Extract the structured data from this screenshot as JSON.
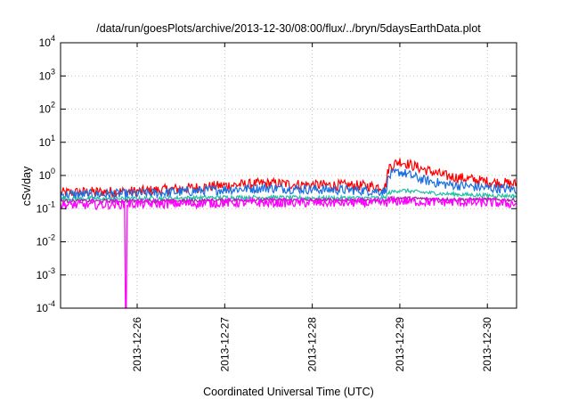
{
  "chart_data": {
    "type": "line",
    "title": "/data/run/goesPlots/archive/2013-12-30/08:00/flux/../bryn/5daysEarthData.plot",
    "xlabel": "Coordinated Universal Time (UTC)",
    "ylabel": "cSv/day",
    "yscale": "log",
    "ylim": [
      0.0001,
      10000
    ],
    "xlim": [
      "2013-12-25T03:00:00Z",
      "2013-12-30T08:00:00Z"
    ],
    "x_ticks": [
      "2013-12-26",
      "2013-12-27",
      "2013-12-28",
      "2013-12-29",
      "2013-12-30"
    ],
    "y_ticks": [
      {
        "base": "10",
        "exp": "4"
      },
      {
        "base": "10",
        "exp": "3"
      },
      {
        "base": "10",
        "exp": "2"
      },
      {
        "base": "10",
        "exp": "1"
      },
      {
        "base": "10",
        "exp": "0"
      },
      {
        "base": "10",
        "exp": "-1"
      },
      {
        "base": "10",
        "exp": "-2"
      },
      {
        "base": "10",
        "exp": "-3"
      },
      {
        "base": "10",
        "exp": "-4"
      }
    ],
    "grid": true,
    "dropout": {
      "x": "2013-12-25T21:00:00Z",
      "series": "magenta"
    },
    "series": [
      {
        "color": "#ff0000",
        "x": [
          "2013-12-25T03:00:00Z",
          "2013-12-25T12:00:00Z",
          "2013-12-26T00:00:00Z",
          "2013-12-26T12:00:00Z",
          "2013-12-27T00:00:00Z",
          "2013-12-27T12:00:00Z",
          "2013-12-28T00:00:00Z",
          "2013-12-28T12:00:00Z",
          "2013-12-28T20:00:00Z",
          "2013-12-28T21:00:00Z",
          "2013-12-29T00:00:00Z",
          "2013-12-29T06:00:00Z",
          "2013-12-29T12:00:00Z",
          "2013-12-30T00:00:00Z",
          "2013-12-30T08:00:00Z"
        ],
        "y": [
          0.3,
          0.32,
          0.33,
          0.4,
          0.5,
          0.58,
          0.52,
          0.5,
          0.45,
          1.8,
          2.7,
          1.6,
          1.0,
          0.65,
          0.55
        ]
      },
      {
        "color": "#1a6ee0",
        "x": [
          "2013-12-25T03:00:00Z",
          "2013-12-25T12:00:00Z",
          "2013-12-26T00:00:00Z",
          "2013-12-26T12:00:00Z",
          "2013-12-27T00:00:00Z",
          "2013-12-27T12:00:00Z",
          "2013-12-28T00:00:00Z",
          "2013-12-28T12:00:00Z",
          "2013-12-28T20:00:00Z",
          "2013-12-28T21:00:00Z",
          "2013-12-29T00:00:00Z",
          "2013-12-29T06:00:00Z",
          "2013-12-29T12:00:00Z",
          "2013-12-30T00:00:00Z",
          "2013-12-30T08:00:00Z"
        ],
        "y": [
          0.26,
          0.27,
          0.28,
          0.32,
          0.38,
          0.42,
          0.38,
          0.36,
          0.33,
          0.95,
          1.3,
          0.75,
          0.55,
          0.42,
          0.38
        ]
      },
      {
        "color": "#20c0a0",
        "x": [
          "2013-12-25T03:00:00Z",
          "2013-12-25T12:00:00Z",
          "2013-12-26T00:00:00Z",
          "2013-12-26T12:00:00Z",
          "2013-12-27T00:00:00Z",
          "2013-12-27T12:00:00Z",
          "2013-12-28T00:00:00Z",
          "2013-12-28T12:00:00Z",
          "2013-12-28T20:00:00Z",
          "2013-12-28T21:00:00Z",
          "2013-12-29T00:00:00Z",
          "2013-12-29T06:00:00Z",
          "2013-12-29T12:00:00Z",
          "2013-12-30T00:00:00Z",
          "2013-12-30T08:00:00Z"
        ],
        "y": [
          0.2,
          0.2,
          0.2,
          0.21,
          0.22,
          0.22,
          0.21,
          0.21,
          0.21,
          0.3,
          0.36,
          0.31,
          0.28,
          0.25,
          0.24
        ]
      },
      {
        "color": "#9a2a9a",
        "x": [
          "2013-12-25T03:00:00Z",
          "2013-12-25T12:00:00Z",
          "2013-12-26T00:00:00Z",
          "2013-12-26T12:00:00Z",
          "2013-12-27T00:00:00Z",
          "2013-12-27T12:00:00Z",
          "2013-12-28T00:00:00Z",
          "2013-12-28T12:00:00Z",
          "2013-12-28T20:00:00Z",
          "2013-12-28T21:00:00Z",
          "2013-12-29T00:00:00Z",
          "2013-12-29T06:00:00Z",
          "2013-12-29T12:00:00Z",
          "2013-12-30T00:00:00Z",
          "2013-12-30T08:00:00Z"
        ],
        "y": [
          0.17,
          0.17,
          0.17,
          0.17,
          0.18,
          0.18,
          0.18,
          0.18,
          0.17,
          0.2,
          0.21,
          0.2,
          0.19,
          0.19,
          0.18
        ]
      },
      {
        "color": "#ff00ff",
        "x": [
          "2013-12-25T03:00:00Z",
          "2013-12-25T12:00:00Z",
          "2013-12-26T00:00:00Z",
          "2013-12-26T12:00:00Z",
          "2013-12-27T00:00:00Z",
          "2013-12-27T12:00:00Z",
          "2013-12-28T00:00:00Z",
          "2013-12-28T12:00:00Z",
          "2013-12-28T20:00:00Z",
          "2013-12-28T21:00:00Z",
          "2013-12-29T00:00:00Z",
          "2013-12-29T06:00:00Z",
          "2013-12-29T12:00:00Z",
          "2013-12-30T00:00:00Z",
          "2013-12-30T08:00:00Z"
        ],
        "y": [
          0.13,
          0.13,
          0.14,
          0.14,
          0.15,
          0.15,
          0.15,
          0.15,
          0.15,
          0.16,
          0.17,
          0.16,
          0.16,
          0.15,
          0.14
        ]
      }
    ]
  }
}
